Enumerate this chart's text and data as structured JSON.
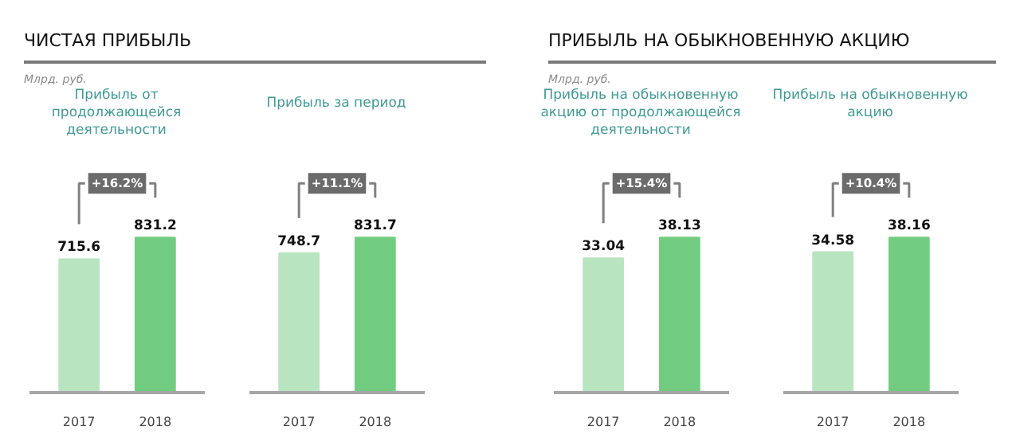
{
  "chart_data": [
    {
      "type": "bar",
      "title": "Прибыль от продолжающейся деятельности",
      "categories": [
        "2017",
        "2018"
      ],
      "values": [
        715.6,
        831.2
      ],
      "colors": [
        "#b9e4c0",
        "#72cc80"
      ],
      "tick_labels": "x",
      "data_labels": true,
      "annotations": [
        "ЧИСТАЯ ПРИБЫЛЬ",
        "Млрд. руб.",
        "+16.2%"
      ]
    },
    {
      "type": "bar",
      "title": "Прибыль за период",
      "categories": [
        "2017",
        "2018"
      ],
      "values": [
        748.7,
        831.7
      ],
      "colors": [
        "#b9e4c0",
        "#72cc80"
      ],
      "tick_labels": "x",
      "data_labels": true,
      "annotations": [
        "+11.1%"
      ]
    },
    {
      "type": "bar",
      "title": "Прибыль на обыкновенную акцию от продолжающейся деятельности",
      "categories": [
        "2017",
        "2018"
      ],
      "values": [
        33.04,
        38.13
      ],
      "colors": [
        "#b9e4c0",
        "#72cc80"
      ],
      "tick_labels": "x",
      "data_labels": true,
      "annotations": [
        "ПРИБЫЛЬ НА ОБЫКНОВЕННУЮ  АКЦИЮ",
        "Млрд. руб.",
        "+15.4%"
      ]
    },
    {
      "type": "bar",
      "title": "Прибыль на обыкновенную акцию",
      "categories": [
        "2017",
        "2018"
      ],
      "values": [
        34.58,
        38.16
      ],
      "colors": [
        "#b9e4c0",
        "#72cc80"
      ],
      "tick_labels": "x",
      "data_labels": true,
      "annotations": [
        "+10.4%"
      ]
    }
  ]
}
